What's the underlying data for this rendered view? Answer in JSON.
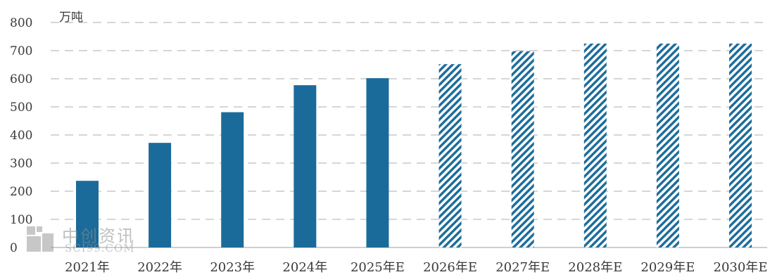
{
  "chart_data": {
    "type": "bar",
    "unit": "万吨",
    "categories": [
      "2021年",
      "2022年",
      "2023年",
      "2024年",
      "2025年E",
      "2026年E",
      "2027年E",
      "2028年E",
      "2029年E",
      "2030年E"
    ],
    "values": [
      237,
      372,
      481,
      577,
      602,
      652,
      698,
      725,
      725,
      725
    ],
    "estimate_style": [
      "solid",
      "solid",
      "solid",
      "solid",
      "solid",
      "hatched",
      "hatched",
      "hatched",
      "hatched",
      "hatched"
    ],
    "ylim": [
      0,
      800
    ],
    "yticks": [
      0,
      100,
      200,
      300,
      400,
      500,
      600,
      700,
      800
    ],
    "grid": true,
    "legend": "none",
    "title": "",
    "xlabel": "",
    "ylabel": ""
  },
  "colors": {
    "bar": "#1a6b9a",
    "grid": "#c8c8c8",
    "axis": "#bfbfbf"
  },
  "watermark": {
    "name": "中创资讯",
    "site": "SCI99.COM"
  }
}
